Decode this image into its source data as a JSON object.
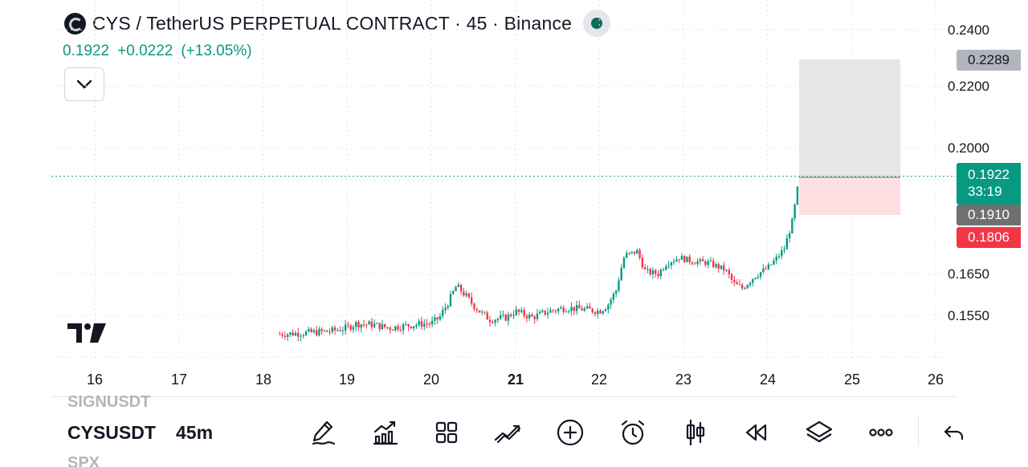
{
  "header": {
    "title": "CYS / TetherUS PERPETUAL CONTRACT · 45 · Binance",
    "last_price": "0.1922",
    "change": "+0.0222",
    "change_pct": "(+13.05%)"
  },
  "price_axis": {
    "labels": [
      "0.2400",
      "0.2200",
      "0.2000",
      "0.1650",
      "0.1550"
    ]
  },
  "tags": {
    "target": "0.2289",
    "current_price": "0.1922",
    "countdown": "33:19",
    "entry": "0.1910",
    "stop": "0.1806"
  },
  "time_axis": {
    "labels": [
      "16",
      "17",
      "18",
      "19",
      "20",
      "21",
      "22",
      "23",
      "24",
      "25",
      "26"
    ]
  },
  "bottom_bar": {
    "symbol_prev": "SIGNUSDT",
    "symbol": "CYSUSDT",
    "symbol_next": "SPX",
    "interval": "45m"
  },
  "toolbar": {
    "icons": [
      "draw-icon",
      "indicators-icon",
      "layouts-icon",
      "compare-icon",
      "add-icon",
      "alert-icon",
      "chart-type-icon",
      "replay-icon",
      "layers-icon",
      "more-icon",
      "undo-icon"
    ]
  },
  "colors": {
    "up": "#089981",
    "down": "#f23645",
    "target_zone": "#e6e6e6",
    "stop_zone": "#fddfe2",
    "live_dot": "#0b6b57"
  },
  "chart_data": {
    "type": "candlestick",
    "instrument": "CYS / TetherUS PERPETUAL CONTRACT",
    "interval": "45",
    "exchange": "Binance",
    "x_labels": [
      "16",
      "17",
      "18",
      "19",
      "20",
      "21",
      "22",
      "23",
      "24",
      "25",
      "26"
    ],
    "y_ticks": [
      0.24,
      0.22,
      0.2,
      0.165,
      0.155
    ],
    "last_price": 0.1922,
    "close_path": [
      [
        18.2,
        0.1505
      ],
      [
        18.5,
        0.1508
      ],
      [
        18.8,
        0.1512
      ],
      [
        19.0,
        0.152
      ],
      [
        19.1,
        0.153
      ],
      [
        19.3,
        0.1528
      ],
      [
        19.5,
        0.152
      ],
      [
        19.7,
        0.1525
      ],
      [
        19.9,
        0.153
      ],
      [
        20.0,
        0.153
      ],
      [
        20.1,
        0.1545
      ],
      [
        20.2,
        0.158
      ],
      [
        20.3,
        0.162
      ],
      [
        20.4,
        0.16
      ],
      [
        20.5,
        0.1575
      ],
      [
        20.6,
        0.1555
      ],
      [
        20.7,
        0.154
      ],
      [
        20.9,
        0.1545
      ],
      [
        21.0,
        0.156
      ],
      [
        21.2,
        0.1545
      ],
      [
        21.4,
        0.156
      ],
      [
        21.6,
        0.1568
      ],
      [
        21.8,
        0.1565
      ],
      [
        22.0,
        0.156
      ],
      [
        22.1,
        0.1575
      ],
      [
        22.2,
        0.161
      ],
      [
        22.3,
        0.17
      ],
      [
        22.45,
        0.1712
      ],
      [
        22.55,
        0.1655
      ],
      [
        22.7,
        0.165
      ],
      [
        22.8,
        0.168
      ],
      [
        22.95,
        0.1695
      ],
      [
        23.1,
        0.1685
      ],
      [
        23.3,
        0.168
      ],
      [
        23.5,
        0.166
      ],
      [
        23.6,
        0.1625
      ],
      [
        23.7,
        0.1615
      ],
      [
        23.85,
        0.1645
      ],
      [
        24.0,
        0.1665
      ],
      [
        24.1,
        0.169
      ],
      [
        24.2,
        0.172
      ],
      [
        24.3,
        0.18
      ],
      [
        24.38,
        0.1922
      ]
    ],
    "last_price_line": 0.1922
  }
}
